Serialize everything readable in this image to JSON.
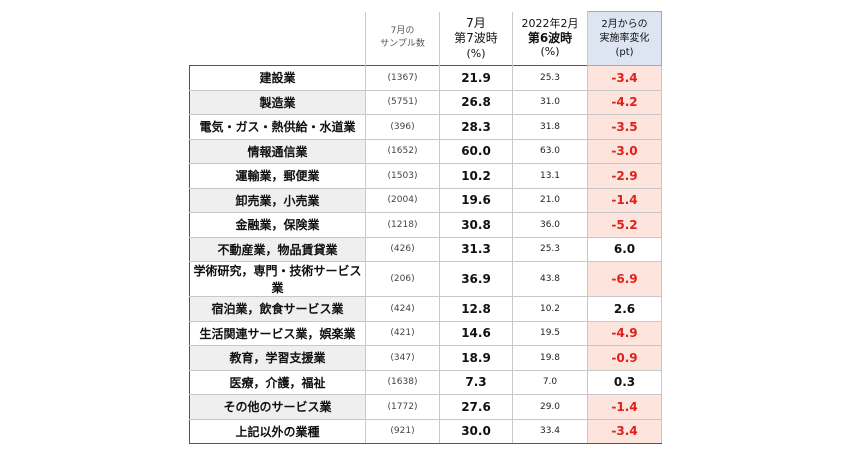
{
  "header": {
    "sample_line1": "7月の",
    "sample_line2": "サンプル数",
    "july_line1": "7月",
    "july_line2": "第7波時",
    "july_unit": "(%)",
    "feb_line1": "2022年2月",
    "feb_line2": "第6波時",
    "feb_unit": "(%)",
    "change_line1": "2月からの",
    "change_line2": "実施率変化",
    "change_unit": "(pt)"
  },
  "rows": [
    {
      "industry": "建設業",
      "sample": "(1367)",
      "july": "21.9",
      "feb": "25.3",
      "change": "-3.4",
      "negative": true
    },
    {
      "industry": "製造業",
      "sample": "(5751)",
      "july": "26.8",
      "feb": "31.0",
      "change": "-4.2",
      "negative": true
    },
    {
      "industry": "電気・ガス・熱供給・水道業",
      "sample": "(396)",
      "july": "28.3",
      "feb": "31.8",
      "change": "-3.5",
      "negative": true
    },
    {
      "industry": "情報通信業",
      "sample": "(1652)",
      "july": "60.0",
      "feb": "63.0",
      "change": "-3.0",
      "negative": true
    },
    {
      "industry": "運輸業，郵便業",
      "sample": "(1503)",
      "july": "10.2",
      "feb": "13.1",
      "change": "-2.9",
      "negative": true
    },
    {
      "industry": "卸売業，小売業",
      "sample": "(2004)",
      "july": "19.6",
      "feb": "21.0",
      "change": "-1.4",
      "negative": true
    },
    {
      "industry": "金融業，保険業",
      "sample": "(1218)",
      "july": "30.8",
      "feb": "36.0",
      "change": "-5.2",
      "negative": true
    },
    {
      "industry": "不動産業，物品賃貸業",
      "sample": "(426)",
      "july": "31.3",
      "feb": "25.3",
      "change": "6.0",
      "negative": false
    },
    {
      "industry": "学術研究，専門・技術サービス業",
      "sample": "(206)",
      "july": "36.9",
      "feb": "43.8",
      "change": "-6.9",
      "negative": true
    },
    {
      "industry": "宿泊業，飲食サービス業",
      "sample": "(424)",
      "july": "12.8",
      "feb": "10.2",
      "change": "2.6",
      "negative": false
    },
    {
      "industry": "生活関連サービス業，娯楽業",
      "sample": "(421)",
      "july": "14.6",
      "feb": "19.5",
      "change": "-4.9",
      "negative": true
    },
    {
      "industry": "教育，学習支援業",
      "sample": "(347)",
      "july": "18.9",
      "feb": "19.8",
      "change": "-0.9",
      "negative": true
    },
    {
      "industry": "医療，介護，福祉",
      "sample": "(1638)",
      "july": "7.3",
      "feb": "7.0",
      "change": "0.3",
      "negative": false
    },
    {
      "industry": "その他のサービス業",
      "sample": "(1772)",
      "july": "27.6",
      "feb": "29.0",
      "change": "-1.4",
      "negative": true
    },
    {
      "industry": "上記以外の業種",
      "sample": "(921)",
      "july": "30.0",
      "feb": "33.4",
      "change": "-3.4",
      "negative": true
    }
  ],
  "colors": {
    "negative_text": "#e0201a",
    "negative_fill": "#fde4dc",
    "header_change_fill": "#dde5f3",
    "stripe": "#efefef"
  }
}
